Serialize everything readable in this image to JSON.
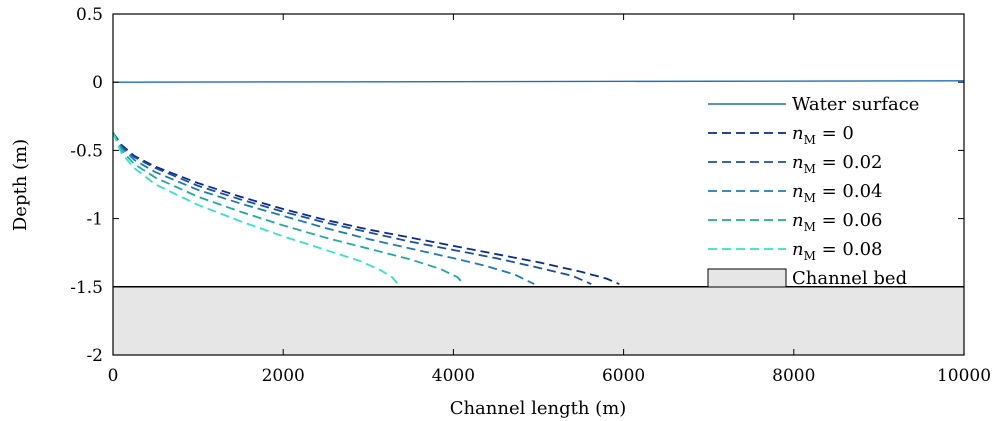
{
  "chart_data": {
    "type": "line",
    "xlabel": "Channel length (m)",
    "ylabel": "Depth (m)",
    "xlim": [
      0,
      10000
    ],
    "ylim": [
      -2,
      0.5
    ],
    "x_ticks": [
      0,
      2000,
      4000,
      6000,
      8000,
      10000
    ],
    "x_tick_labels": [
      "0",
      "2000",
      "4000",
      "6000",
      "8000",
      "10000"
    ],
    "y_ticks": [
      0.5,
      0,
      -0.5,
      -1,
      -1.5,
      -2
    ],
    "y_tick_labels": [
      "0.5",
      "0",
      "-0.5",
      "-1",
      "-1.5",
      "-2"
    ],
    "grid": false,
    "legend_position": "right",
    "water_surface": {
      "name": "Water surface",
      "color": "#1f6fb4",
      "x": [
        0,
        10000
      ],
      "y": [
        0,
        0.01
      ]
    },
    "channel_bed": {
      "name": "Channel bed",
      "top": -1.5,
      "bottom": -2,
      "fill": "#e6e6e6"
    },
    "series": [
      {
        "name": "n_M = 0",
        "label_symbol": "n",
        "label_sub": "M",
        "label_value": "= 0",
        "color": "#0b2a8f",
        "dash": true,
        "x": [
          0,
          100,
          250,
          500,
          1000,
          1500,
          2000,
          2500,
          3000,
          3500,
          4000,
          4500,
          5000,
          5500,
          5800,
          5950
        ],
        "y": [
          -0.37,
          -0.46,
          -0.54,
          -0.62,
          -0.74,
          -0.84,
          -0.93,
          -1.01,
          -1.08,
          -1.14,
          -1.2,
          -1.26,
          -1.32,
          -1.39,
          -1.44,
          -1.48
        ]
      },
      {
        "name": "n_M = 0.02",
        "label_symbol": "n",
        "label_sub": "M",
        "label_value": "= 0.02",
        "color": "#1a4ea3",
        "dash": true,
        "x": [
          0,
          100,
          250,
          500,
          1000,
          1500,
          2000,
          2500,
          3000,
          3500,
          4000,
          4500,
          5000,
          5400,
          5620
        ],
        "y": [
          -0.37,
          -0.47,
          -0.55,
          -0.63,
          -0.76,
          -0.86,
          -0.95,
          -1.03,
          -1.1,
          -1.17,
          -1.23,
          -1.29,
          -1.36,
          -1.42,
          -1.48
        ]
      },
      {
        "name": "n_M = 0.04",
        "label_symbol": "n",
        "label_sub": "M",
        "label_value": "= 0.04",
        "color": "#1e7bb5",
        "dash": true,
        "x": [
          0,
          100,
          250,
          500,
          1000,
          1500,
          2000,
          2500,
          3000,
          3500,
          4000,
          4400,
          4720,
          4950
        ],
        "y": [
          -0.37,
          -0.48,
          -0.57,
          -0.66,
          -0.79,
          -0.89,
          -0.98,
          -1.07,
          -1.15,
          -1.22,
          -1.29,
          -1.35,
          -1.41,
          -1.48
        ]
      },
      {
        "name": "n_M = 0.06",
        "label_symbol": "n",
        "label_sub": "M",
        "label_value": "= 0.06",
        "color": "#1fa9a3",
        "dash": true,
        "x": [
          0,
          100,
          250,
          500,
          1000,
          1500,
          2000,
          2500,
          3000,
          3500,
          3850,
          4050,
          4120
        ],
        "y": [
          -0.37,
          -0.5,
          -0.6,
          -0.7,
          -0.84,
          -0.95,
          -1.05,
          -1.14,
          -1.22,
          -1.3,
          -1.37,
          -1.43,
          -1.48
        ]
      },
      {
        "name": "n_M = 0.08",
        "label_symbol": "n",
        "label_sub": "M",
        "label_value": "= 0.08",
        "color": "#2fe6c2",
        "dash": true,
        "x": [
          0,
          100,
          250,
          500,
          1000,
          1500,
          2000,
          2500,
          2900,
          3150,
          3280,
          3350
        ],
        "y": [
          -0.37,
          -0.52,
          -0.63,
          -0.75,
          -0.9,
          -1.02,
          -1.13,
          -1.23,
          -1.31,
          -1.38,
          -1.43,
          -1.48
        ]
      }
    ]
  }
}
